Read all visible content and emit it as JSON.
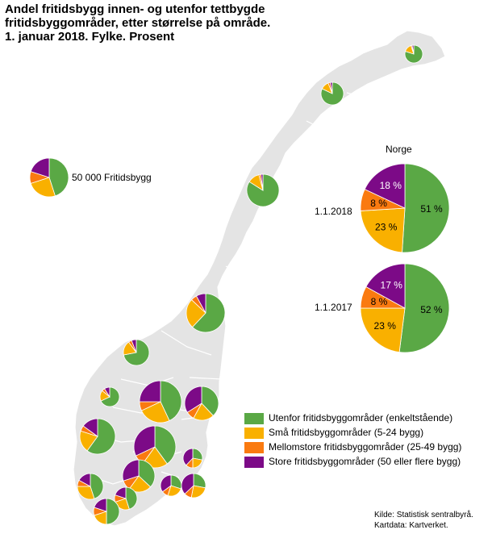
{
  "title_lines": [
    "Andel fritidsbygg innen- og utenfor tettbygde",
    "fritidsbyggområder, etter størrelse på område.",
    "1. januar 2018. Fylke. Prosent"
  ],
  "colors": {
    "utenfor": "#5aa845",
    "sma": "#f9b000",
    "mellomstore": "#fa7a10",
    "store": "#7c0a87",
    "land": "#e4e4e4",
    "border": "#ffffff"
  },
  "legend": [
    {
      "key": "utenfor",
      "label": "Utenfor fritidsbyggområder (enkeltstående)"
    },
    {
      "key": "sma",
      "label": "Små fritidsbyggområder (5-24 bygg)"
    },
    {
      "key": "mellomstore",
      "label": "Mellomstore fritidsbyggområder (25-49 bygg)"
    },
    {
      "key": "store",
      "label": "Store fritidsbyggområder (50 eller flere bygg)"
    }
  ],
  "scale_label": "50 000 Fritidsbygg",
  "norge": {
    "title": "Norge",
    "pies": [
      {
        "date": "1.1.2018",
        "values": {
          "utenfor": 51,
          "sma": 23,
          "mellomstore": 8,
          "store": 18
        },
        "labels": {
          "utenfor": "51 %",
          "sma": "23 %",
          "mellomstore": "8 %",
          "store": "18 %"
        }
      },
      {
        "date": "1.1.2017",
        "values": {
          "utenfor": 52,
          "sma": 23,
          "mellomstore": 8,
          "store": 17
        },
        "labels": {
          "utenfor": "52 %",
          "sma": "23 %",
          "mellomstore": "8 %",
          "store": "17 %"
        }
      }
    ]
  },
  "source_lines": [
    "Kilde: Statistisk sentralbyrå.",
    "Kartdata: Kartverket."
  ]
}
